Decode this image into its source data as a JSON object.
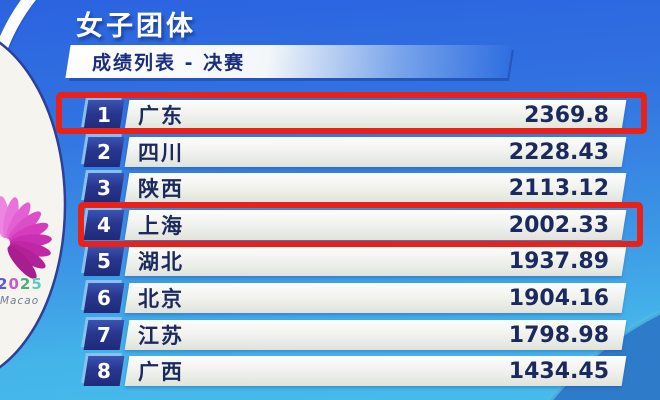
{
  "header": {
    "title": "女子团体",
    "subtitle": "成绩列表 - 决赛"
  },
  "logo": {
    "name": "national-games-2025-emblem",
    "year": "2025",
    "year_colors": [
      "#5b57d8",
      "#c95ac6",
      "#4fae6e",
      "#63c8c0"
    ],
    "location": "Macao",
    "petal_colors": [
      "#ec86e0",
      "#e873da",
      "#e360d2",
      "#dc4dc8",
      "#d43cbd",
      "#ca2fb1",
      "#bf27a5",
      "#b32199",
      "#a81d8f"
    ]
  },
  "colors": {
    "header_blue": "#2b63df",
    "panel_cyan": "#47bceb",
    "rank_box_navy": "#232f85",
    "text_navy": "#1b2a5e",
    "annotation_red": "#e8211b"
  },
  "annotations": {
    "type": "red-box-highlight",
    "highlighted_ranks": [
      1,
      4
    ],
    "color": "#e8211b"
  },
  "chart_data": {
    "type": "table",
    "title": "女子团体",
    "subtitle": "成绩列表 - 决赛",
    "rows": [
      {
        "rank": "1",
        "team": "广东",
        "score": "2369.8",
        "highlighted": true
      },
      {
        "rank": "2",
        "team": "四川",
        "score": "2228.43",
        "highlighted": false
      },
      {
        "rank": "3",
        "team": "陕西",
        "score": "2113.12",
        "highlighted": false
      },
      {
        "rank": "4",
        "team": "上海",
        "score": "2002.33",
        "highlighted": true
      },
      {
        "rank": "5",
        "team": "湖北",
        "score": "1937.89",
        "highlighted": false
      },
      {
        "rank": "6",
        "team": "北京",
        "score": "1904.16",
        "highlighted": false
      },
      {
        "rank": "7",
        "team": "江苏",
        "score": "1798.98",
        "highlighted": false
      },
      {
        "rank": "8",
        "team": "广西",
        "score": "1434.45",
        "highlighted": false
      }
    ]
  }
}
